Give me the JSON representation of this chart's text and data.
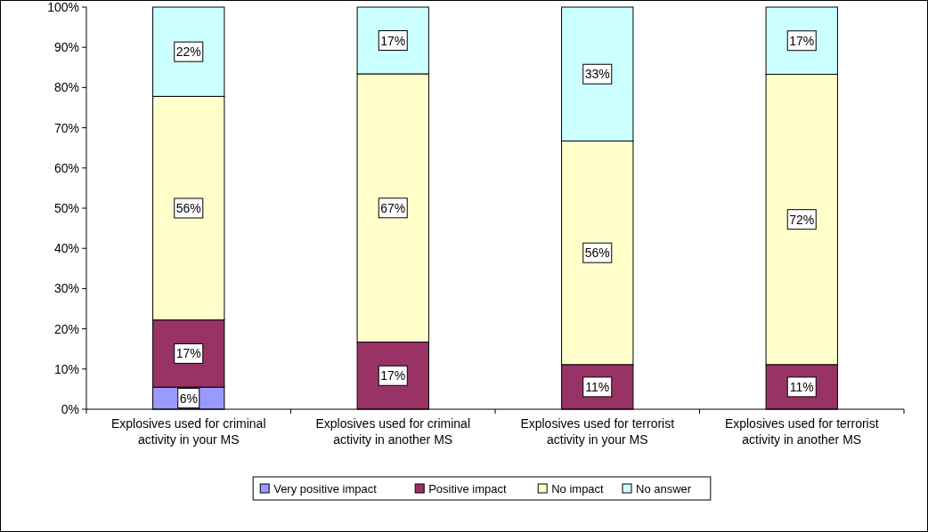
{
  "chart_data": {
    "type": "bar",
    "stacked": true,
    "categories": [
      "Explosives used for criminal activity in your MS",
      "Explosives used for criminal activity in another MS",
      "Explosives used for terrorist activity in your MS",
      "Explosives used for terrorist activity in another MS"
    ],
    "series": [
      {
        "name": "Very positive impact",
        "color": "#9999ff",
        "values": [
          5.5,
          null,
          null,
          null
        ],
        "value_labels": [
          "6%",
          null,
          null,
          null
        ]
      },
      {
        "name": "Positive impact",
        "color": "#993366",
        "values": [
          16.7,
          16.7,
          11.1,
          11.1
        ],
        "value_labels": [
          "17%",
          "17%",
          "11%",
          "11%"
        ]
      },
      {
        "name": "No impact",
        "color": "#ffffcc",
        "values": [
          55.6,
          66.7,
          55.6,
          72.2
        ],
        "value_labels": [
          "56%",
          "67%",
          "56%",
          "72%"
        ]
      },
      {
        "name": "No answer",
        "color": "#ccffff",
        "values": [
          22.2,
          16.6,
          33.3,
          16.7
        ],
        "value_labels": [
          "22%",
          "17%",
          "33%",
          "17%"
        ]
      }
    ],
    "ylim": [
      0,
      100
    ],
    "yticks": [
      {
        "value": 0,
        "label": "0%"
      },
      {
        "value": 10,
        "label": "10%"
      },
      {
        "value": 20,
        "label": "20%"
      },
      {
        "value": 30,
        "label": "30%"
      },
      {
        "value": 40,
        "label": "40%"
      },
      {
        "value": 50,
        "label": "50%"
      },
      {
        "value": 60,
        "label": "60%"
      },
      {
        "value": 70,
        "label": "70%"
      },
      {
        "value": 80,
        "label": "80%"
      },
      {
        "value": 90,
        "label": "90%"
      },
      {
        "value": 100,
        "label": "100%"
      }
    ],
    "legend": "bottom"
  }
}
